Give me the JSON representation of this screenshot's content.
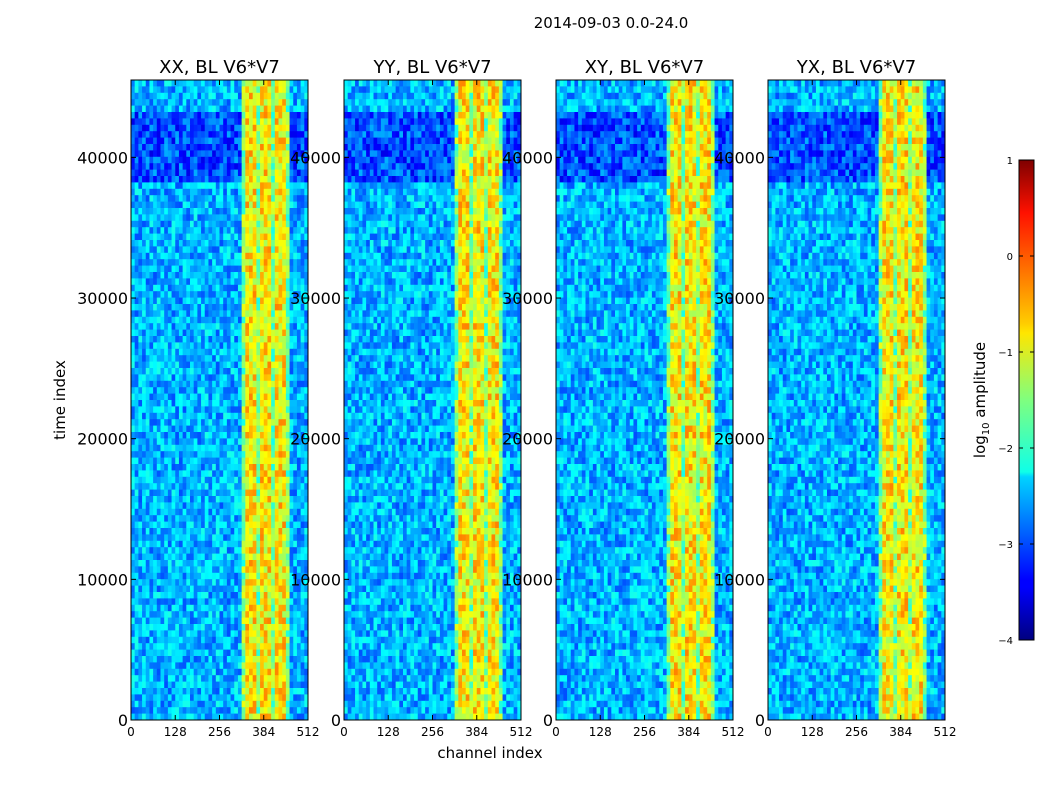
{
  "chart_data": {
    "type": "heatmap",
    "title": "2014-09-03 0.0-24.0",
    "xlabel": "channel index",
    "ylabel": "time index",
    "xlim": [
      0,
      512
    ],
    "ylim": [
      0,
      45500
    ],
    "x_ticks": [
      0,
      128,
      256,
      384,
      512
    ],
    "y_ticks": [
      0,
      10000,
      20000,
      30000,
      40000
    ],
    "panels": [
      {
        "title": "XX, BL V6*V7",
        "pol": "XX"
      },
      {
        "title": "YY, BL V6*V7",
        "pol": "YY"
      },
      {
        "title": "XY, BL V6*V7",
        "pol": "XY"
      },
      {
        "title": "YX, BL V6*V7",
        "pol": "YX"
      }
    ],
    "colorbar": {
      "label_prefix": "log",
      "label_sub": "10",
      "label_suffix": " amplitude",
      "range": [
        -4,
        1
      ],
      "ticks": [
        "1",
        "0",
        "−1",
        "−2",
        "−3",
        "−4"
      ],
      "colormap": "jet"
    },
    "bright_band_channels": [
      320,
      460
    ],
    "bright_band_value_approx": -0.8,
    "background_value_approx": -2.5
  }
}
